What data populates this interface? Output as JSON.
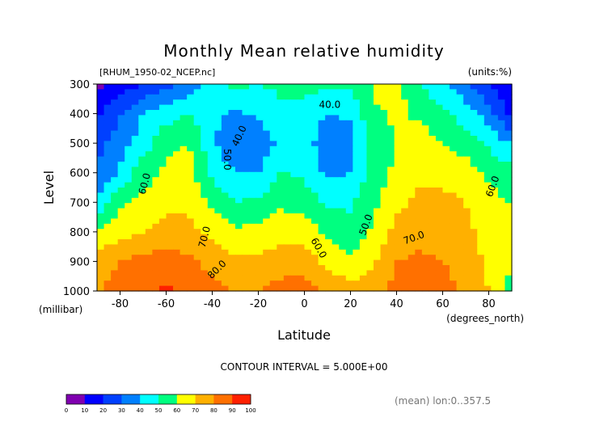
{
  "chart_data": {
    "type": "heatmap",
    "title": "Monthly Mean relative humidity",
    "file_label": "[RHUM_1950-02_NCEP.nc]",
    "units_label": "(units:%)",
    "xlabel": "Latitude",
    "xunit": "(degrees_north)",
    "ylabel": "Level",
    "yunit": "(millibar)",
    "xlim": [
      -90,
      90
    ],
    "ylim": [
      1000,
      300
    ],
    "x_ticks": [
      -80,
      -60,
      -40,
      -20,
      0,
      20,
      40,
      60,
      80
    ],
    "x_tick_labels": [
      "-80",
      "-60",
      "-40",
      "-20",
      "0",
      "20",
      "40",
      "60",
      "80"
    ],
    "y_ticks": [
      300,
      400,
      500,
      600,
      700,
      800,
      900,
      1000
    ],
    "y_tick_labels": [
      "300",
      "400",
      "500",
      "600",
      "700",
      "800",
      "900",
      "1000"
    ],
    "x": [
      -88,
      -80,
      -70,
      -60,
      -50,
      -40,
      -30,
      -20,
      -10,
      0,
      10,
      20,
      30,
      40,
      50,
      60,
      70,
      80,
      88
    ],
    "levels": [
      300,
      400,
      500,
      600,
      700,
      800,
      900,
      1000
    ],
    "values": [
      [
        8,
        15,
        20,
        26,
        33,
        47,
        52,
        50,
        52,
        55,
        52,
        51,
        62,
        64,
        50,
        42,
        33,
        20,
        10
      ],
      [
        20,
        30,
        40,
        45,
        50,
        43,
        38,
        42,
        48,
        44,
        40,
        42,
        58,
        62,
        58,
        52,
        45,
        35,
        20
      ],
      [
        28,
        35,
        45,
        58,
        60,
        42,
        30,
        32,
        44,
        45,
        33,
        35,
        55,
        60,
        65,
        60,
        55,
        48,
        40
      ],
      [
        32,
        42,
        56,
        62,
        63,
        48,
        40,
        40,
        50,
        48,
        38,
        40,
        55,
        62,
        68,
        68,
        65,
        58,
        55
      ],
      [
        45,
        58,
        62,
        67,
        68,
        57,
        50,
        52,
        58,
        56,
        48,
        48,
        58,
        68,
        72,
        72,
        70,
        63,
        60
      ],
      [
        62,
        66,
        70,
        74,
        73,
        68,
        62,
        63,
        66,
        65,
        58,
        54,
        62,
        73,
        76,
        75,
        73,
        65,
        63
      ],
      [
        75,
        80,
        83,
        85,
        82,
        77,
        72,
        72,
        75,
        76,
        67,
        62,
        68,
        80,
        82,
        80,
        76,
        68,
        62
      ],
      [
        80,
        84,
        88,
        92,
        87,
        83,
        80,
        80,
        84,
        84,
        78,
        74,
        76,
        83,
        86,
        83,
        78,
        70,
        58
      ]
    ],
    "contour_labels": [
      "40.0",
      "40.0",
      "50.0",
      "60.0",
      "60.0",
      "50.0",
      "70.0",
      "70.0",
      "80.0",
      "60.0"
    ],
    "contour_interval_text": "CONTOUR INTERVAL = 5.000E+00",
    "footer_text": "(mean) lon:0..357.5",
    "colorbar": {
      "ticks": [
        "0",
        "10",
        "20",
        "30",
        "40",
        "50",
        "60",
        "70",
        "80",
        "90",
        "100"
      ],
      "colors": [
        "#8000b0",
        "#0000ff",
        "#0040ff",
        "#0080ff",
        "#00ffff",
        "#00ff80",
        "#ffff00",
        "#ffb000",
        "#ff7000",
        "#ff2000"
      ]
    },
    "grid": false
  }
}
